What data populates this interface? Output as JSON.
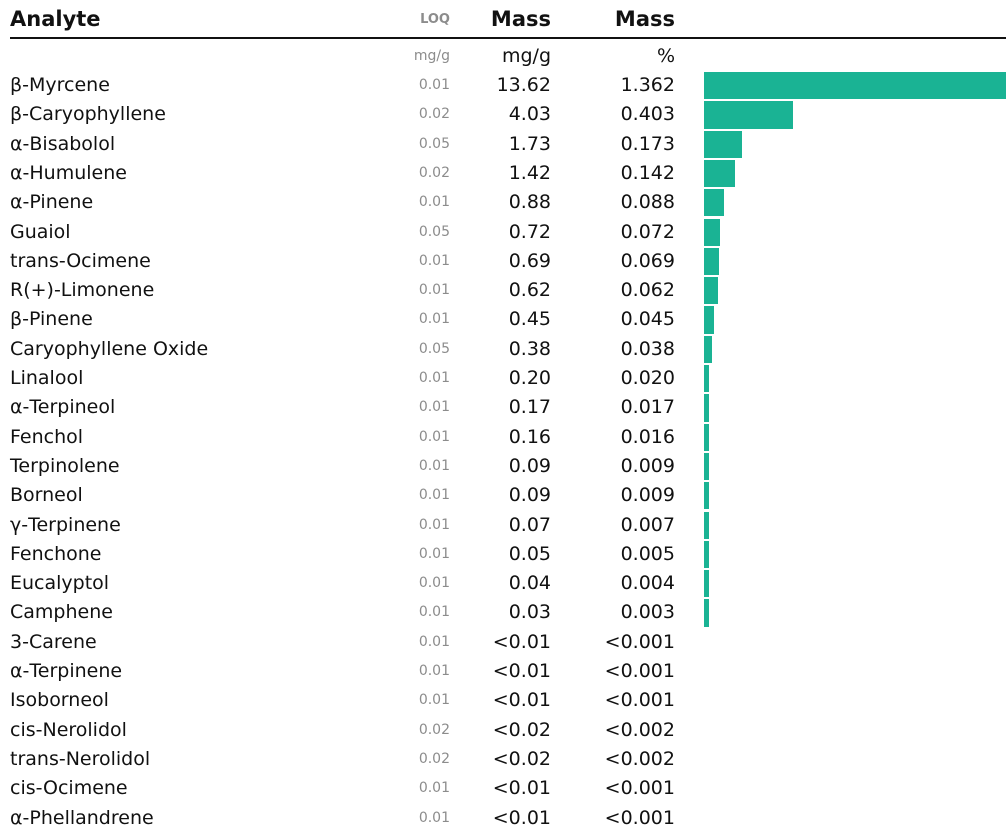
{
  "header": {
    "analyte": "Analyte",
    "loq": "LOQ",
    "mass": "Mass",
    "mass_pct": "Mass",
    "unit_loq": "mg/g",
    "unit_mass": "mg/g",
    "unit_pct": "%"
  },
  "colors": {
    "bar": "#1ab394"
  },
  "chart_data": {
    "type": "bar",
    "orientation": "horizontal",
    "categories": [
      "β-Myrcene",
      "β-Caryophyllene",
      "α-Bisabolol",
      "α-Humulene",
      "α-Pinene",
      "Guaiol",
      "trans-Ocimene",
      "R(+)-Limonene",
      "β-Pinene",
      "Caryophyllene Oxide",
      "Linalool",
      "α-Terpineol",
      "Fenchol",
      "Terpinolene",
      "Borneol",
      "γ-Terpinene",
      "Fenchone",
      "Eucalyptol",
      "Camphene",
      "3-Carene",
      "α-Terpinene",
      "Isoborneol",
      "cis-Nerolidol",
      "trans-Nerolidol",
      "cis-Ocimene",
      "α-Phellandrene"
    ],
    "values": [
      13.62,
      4.03,
      1.73,
      1.42,
      0.88,
      0.72,
      0.69,
      0.62,
      0.45,
      0.38,
      0.2,
      0.17,
      0.16,
      0.09,
      0.09,
      0.07,
      0.05,
      0.04,
      0.03,
      0,
      0,
      0,
      0,
      0,
      0,
      0
    ],
    "rows": [
      {
        "name": "β-Myrcene",
        "loq": "0.01",
        "mass": "13.62",
        "pct": "1.362"
      },
      {
        "name": "β-Caryophyllene",
        "loq": "0.02",
        "mass": "4.03",
        "pct": "0.403"
      },
      {
        "name": "α-Bisabolol",
        "loq": "0.05",
        "mass": "1.73",
        "pct": "0.173"
      },
      {
        "name": "α-Humulene",
        "loq": "0.02",
        "mass": "1.42",
        "pct": "0.142"
      },
      {
        "name": "α-Pinene",
        "loq": "0.01",
        "mass": "0.88",
        "pct": "0.088"
      },
      {
        "name": "Guaiol",
        "loq": "0.05",
        "mass": "0.72",
        "pct": "0.072"
      },
      {
        "name": "trans-Ocimene",
        "loq": "0.01",
        "mass": "0.69",
        "pct": "0.069"
      },
      {
        "name": "R(+)-Limonene",
        "loq": "0.01",
        "mass": "0.62",
        "pct": "0.062"
      },
      {
        "name": "β-Pinene",
        "loq": "0.01",
        "mass": "0.45",
        "pct": "0.045"
      },
      {
        "name": "Caryophyllene Oxide",
        "loq": "0.05",
        "mass": "0.38",
        "pct": "0.038"
      },
      {
        "name": "Linalool",
        "loq": "0.01",
        "mass": "0.20",
        "pct": "0.020"
      },
      {
        "name": "α-Terpineol",
        "loq": "0.01",
        "mass": "0.17",
        "pct": "0.017"
      },
      {
        "name": "Fenchol",
        "loq": "0.01",
        "mass": "0.16",
        "pct": "0.016"
      },
      {
        "name": "Terpinolene",
        "loq": "0.01",
        "mass": "0.09",
        "pct": "0.009"
      },
      {
        "name": "Borneol",
        "loq": "0.01",
        "mass": "0.09",
        "pct": "0.009"
      },
      {
        "name": "γ-Terpinene",
        "loq": "0.01",
        "mass": "0.07",
        "pct": "0.007"
      },
      {
        "name": "Fenchone",
        "loq": "0.01",
        "mass": "0.05",
        "pct": "0.005"
      },
      {
        "name": "Eucalyptol",
        "loq": "0.01",
        "mass": "0.04",
        "pct": "0.004"
      },
      {
        "name": "Camphene",
        "loq": "0.01",
        "mass": "0.03",
        "pct": "0.003"
      },
      {
        "name": "3-Carene",
        "loq": "0.01",
        "mass": "<0.01",
        "pct": "<0.001"
      },
      {
        "name": "α-Terpinene",
        "loq": "0.01",
        "mass": "<0.01",
        "pct": "<0.001"
      },
      {
        "name": "Isoborneol",
        "loq": "0.01",
        "mass": "<0.01",
        "pct": "<0.001"
      },
      {
        "name": "cis-Nerolidol",
        "loq": "0.02",
        "mass": "<0.02",
        "pct": "<0.002"
      },
      {
        "name": "trans-Nerolidol",
        "loq": "0.02",
        "mass": "<0.02",
        "pct": "<0.002"
      },
      {
        "name": "cis-Ocimene",
        "loq": "0.01",
        "mass": "<0.01",
        "pct": "<0.001"
      },
      {
        "name": "α-Phellandrene",
        "loq": "0.01",
        "mass": "<0.01",
        "pct": "<0.001"
      }
    ]
  }
}
